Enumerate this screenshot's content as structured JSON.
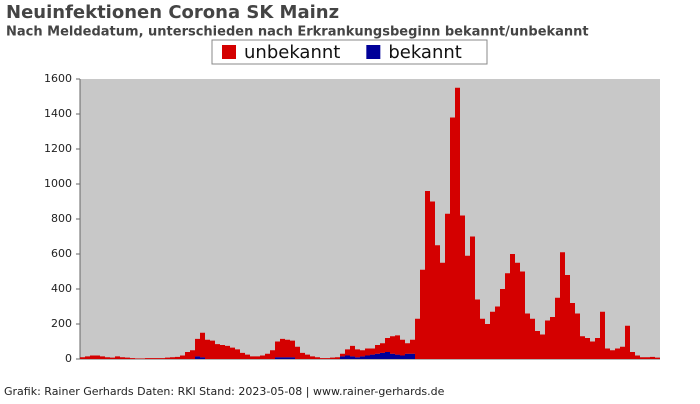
{
  "chart_data": {
    "type": "stacked_bar",
    "title": "Neuinfektionen Corona SK Mainz",
    "subtitle": "Nach Meldedatum, unterschieden nach Erkrankungsbeginn bekannt/unbekannt",
    "footer": "Grafik: Rainer Gerhards Daten: RKI Stand: 2023-05-08 | www.rainer-gerhards.de",
    "categories": [
      null,
      null,
      null,
      null,
      null,
      null,
      null,
      null,
      null,
      null,
      null,
      null,
      null,
      null,
      null,
      null,
      null,
      null,
      null,
      null,
      null,
      null,
      null,
      null,
      null,
      null,
      null,
      null,
      null,
      null,
      null,
      null,
      null,
      null,
      null,
      null,
      null,
      null,
      null,
      null,
      null,
      null,
      null,
      null,
      null,
      null,
      null,
      null,
      null,
      null,
      null,
      null,
      null,
      null,
      null,
      null,
      null,
      null,
      null,
      null,
      null,
      null,
      null,
      null,
      null,
      null,
      null,
      null,
      null,
      null,
      null,
      null,
      null,
      null,
      null,
      null,
      null,
      null,
      null,
      null,
      null,
      null,
      null,
      null,
      null,
      null,
      null,
      null,
      null,
      null,
      null,
      null,
      null,
      null,
      null,
      null,
      null,
      null,
      null,
      null,
      null,
      null,
      null,
      null,
      null,
      null,
      null,
      null,
      null,
      null,
      null,
      null,
      null,
      null,
      null,
      null
    ],
    "series": [
      {
        "name": "unbekannt",
        "color": "#d40000",
        "values": [
          10,
          15,
          20,
          20,
          15,
          10,
          8,
          15,
          10,
          8,
          5,
          3,
          3,
          5,
          5,
          5,
          5,
          8,
          10,
          12,
          20,
          40,
          50,
          100,
          140,
          110,
          105,
          85,
          80,
          75,
          65,
          55,
          35,
          25,
          15,
          15,
          20,
          30,
          50,
          90,
          105,
          100,
          95,
          70,
          35,
          25,
          15,
          10,
          5,
          5,
          8,
          10,
          15,
          35,
          60,
          45,
          35,
          40,
          35,
          50,
          55,
          80,
          100,
          110,
          90,
          60,
          80,
          230,
          510,
          960,
          900,
          650,
          550,
          830,
          1380,
          1550,
          820,
          590,
          700,
          340,
          230,
          200,
          270,
          300,
          400,
          490,
          600,
          550,
          500,
          260,
          230,
          160,
          140,
          220,
          240,
          350,
          610,
          480,
          320,
          260,
          130,
          120,
          100,
          120,
          270,
          60,
          50,
          60,
          70,
          190,
          40,
          20,
          10,
          10,
          12,
          8
        ]
      },
      {
        "name": "bekannt",
        "color": "#000099",
        "values": [
          0,
          0,
          0,
          0,
          0,
          0,
          0,
          0,
          0,
          0,
          0,
          0,
          0,
          0,
          0,
          0,
          0,
          0,
          0,
          0,
          0,
          0,
          0,
          15,
          10,
          0,
          0,
          0,
          0,
          0,
          0,
          0,
          0,
          0,
          0,
          0,
          0,
          0,
          0,
          10,
          10,
          10,
          10,
          0,
          0,
          0,
          0,
          0,
          0,
          0,
          0,
          0,
          15,
          20,
          15,
          10,
          15,
          20,
          25,
          30,
          35,
          40,
          30,
          25,
          20,
          30,
          30,
          0,
          0,
          0,
          0,
          0,
          0,
          0,
          0,
          0,
          0,
          0,
          0,
          0,
          0,
          0,
          0,
          0,
          0,
          0,
          0,
          0,
          0,
          0,
          0,
          0,
          0,
          0,
          0,
          0,
          0,
          0,
          0,
          0,
          0,
          0,
          0,
          0,
          0,
          0,
          0,
          0,
          0,
          0,
          0,
          0,
          0,
          0,
          0,
          0
        ]
      }
    ],
    "stack_order": [
      "bekannt",
      "unbekannt"
    ],
    "ylim": [
      0,
      1600
    ],
    "yticks": [
      0,
      200,
      400,
      600,
      800,
      1000,
      1200,
      1400,
      1600
    ],
    "grid": false
  }
}
